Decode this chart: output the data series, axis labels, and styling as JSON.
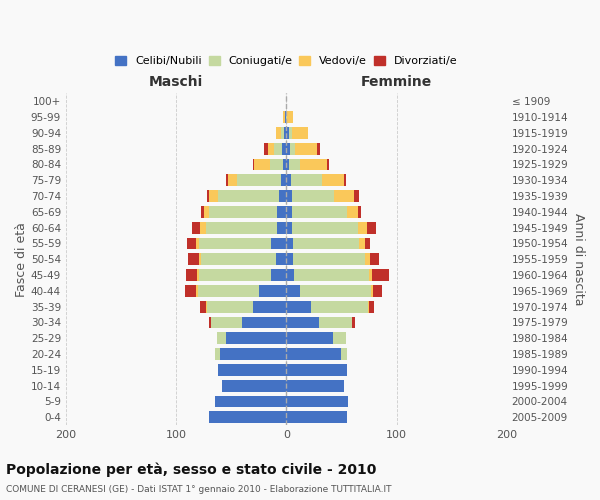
{
  "age_groups": [
    "0-4",
    "5-9",
    "10-14",
    "15-19",
    "20-24",
    "25-29",
    "30-34",
    "35-39",
    "40-44",
    "45-49",
    "50-54",
    "55-59",
    "60-64",
    "65-69",
    "70-74",
    "75-79",
    "80-84",
    "85-89",
    "90-94",
    "95-99",
    "100+"
  ],
  "birth_years": [
    "2005-2009",
    "2000-2004",
    "1995-1999",
    "1990-1994",
    "1985-1989",
    "1980-1984",
    "1975-1979",
    "1970-1974",
    "1965-1969",
    "1960-1964",
    "1955-1959",
    "1950-1954",
    "1945-1949",
    "1940-1944",
    "1935-1939",
    "1930-1934",
    "1925-1929",
    "1920-1924",
    "1915-1919",
    "1910-1914",
    "≤ 1909"
  ],
  "maschi": {
    "celibi": [
      70,
      65,
      58,
      62,
      60,
      55,
      40,
      30,
      25,
      14,
      9,
      14,
      8,
      8,
      7,
      5,
      3,
      4,
      2,
      1,
      0
    ],
    "coniugati": [
      0,
      0,
      0,
      0,
      5,
      8,
      28,
      42,
      55,
      65,
      68,
      65,
      65,
      62,
      55,
      40,
      12,
      7,
      3,
      0,
      0
    ],
    "vedovi": [
      0,
      0,
      0,
      0,
      0,
      0,
      0,
      1,
      2,
      2,
      2,
      3,
      5,
      5,
      8,
      8,
      14,
      6,
      4,
      2,
      0
    ],
    "divorziati": [
      0,
      0,
      0,
      0,
      0,
      0,
      2,
      5,
      10,
      10,
      10,
      8,
      8,
      2,
      2,
      2,
      1,
      3,
      0,
      0,
      0
    ]
  },
  "femmine": {
    "nubili": [
      55,
      56,
      52,
      55,
      50,
      42,
      30,
      22,
      12,
      7,
      6,
      6,
      5,
      5,
      5,
      4,
      2,
      3,
      2,
      0,
      0
    ],
    "coniugate": [
      0,
      0,
      0,
      0,
      5,
      12,
      30,
      52,
      65,
      68,
      65,
      60,
      60,
      50,
      38,
      28,
      10,
      5,
      3,
      1,
      0
    ],
    "vedove": [
      0,
      0,
      0,
      0,
      0,
      0,
      0,
      1,
      2,
      3,
      5,
      5,
      8,
      10,
      18,
      20,
      25,
      20,
      15,
      5,
      0
    ],
    "divorziate": [
      0,
      0,
      0,
      0,
      0,
      0,
      2,
      5,
      8,
      15,
      8,
      5,
      8,
      3,
      5,
      2,
      2,
      3,
      0,
      0,
      0
    ]
  },
  "colors": {
    "celibi": "#4472C4",
    "coniugati": "#C5D9A0",
    "vedovi": "#FAC85A",
    "divorziati": "#C0302A"
  },
  "legend_labels": [
    "Celibi/Nubili",
    "Coniugati/e",
    "Vedovi/e",
    "Divorziati/e"
  ],
  "title": "Popolazione per età, sesso e stato civile - 2010",
  "subtitle": "COMUNE DI CERANESI (GE) - Dati ISTAT 1° gennaio 2010 - Elaborazione TUTTITALIA.IT",
  "ylabel_left": "Fasce di età",
  "ylabel_right": "Anni di nascita",
  "xlabel_left": "Maschi",
  "xlabel_right": "Femmine",
  "xlim": 200,
  "background": "#f9f9f9",
  "grid_color": "#cccccc"
}
